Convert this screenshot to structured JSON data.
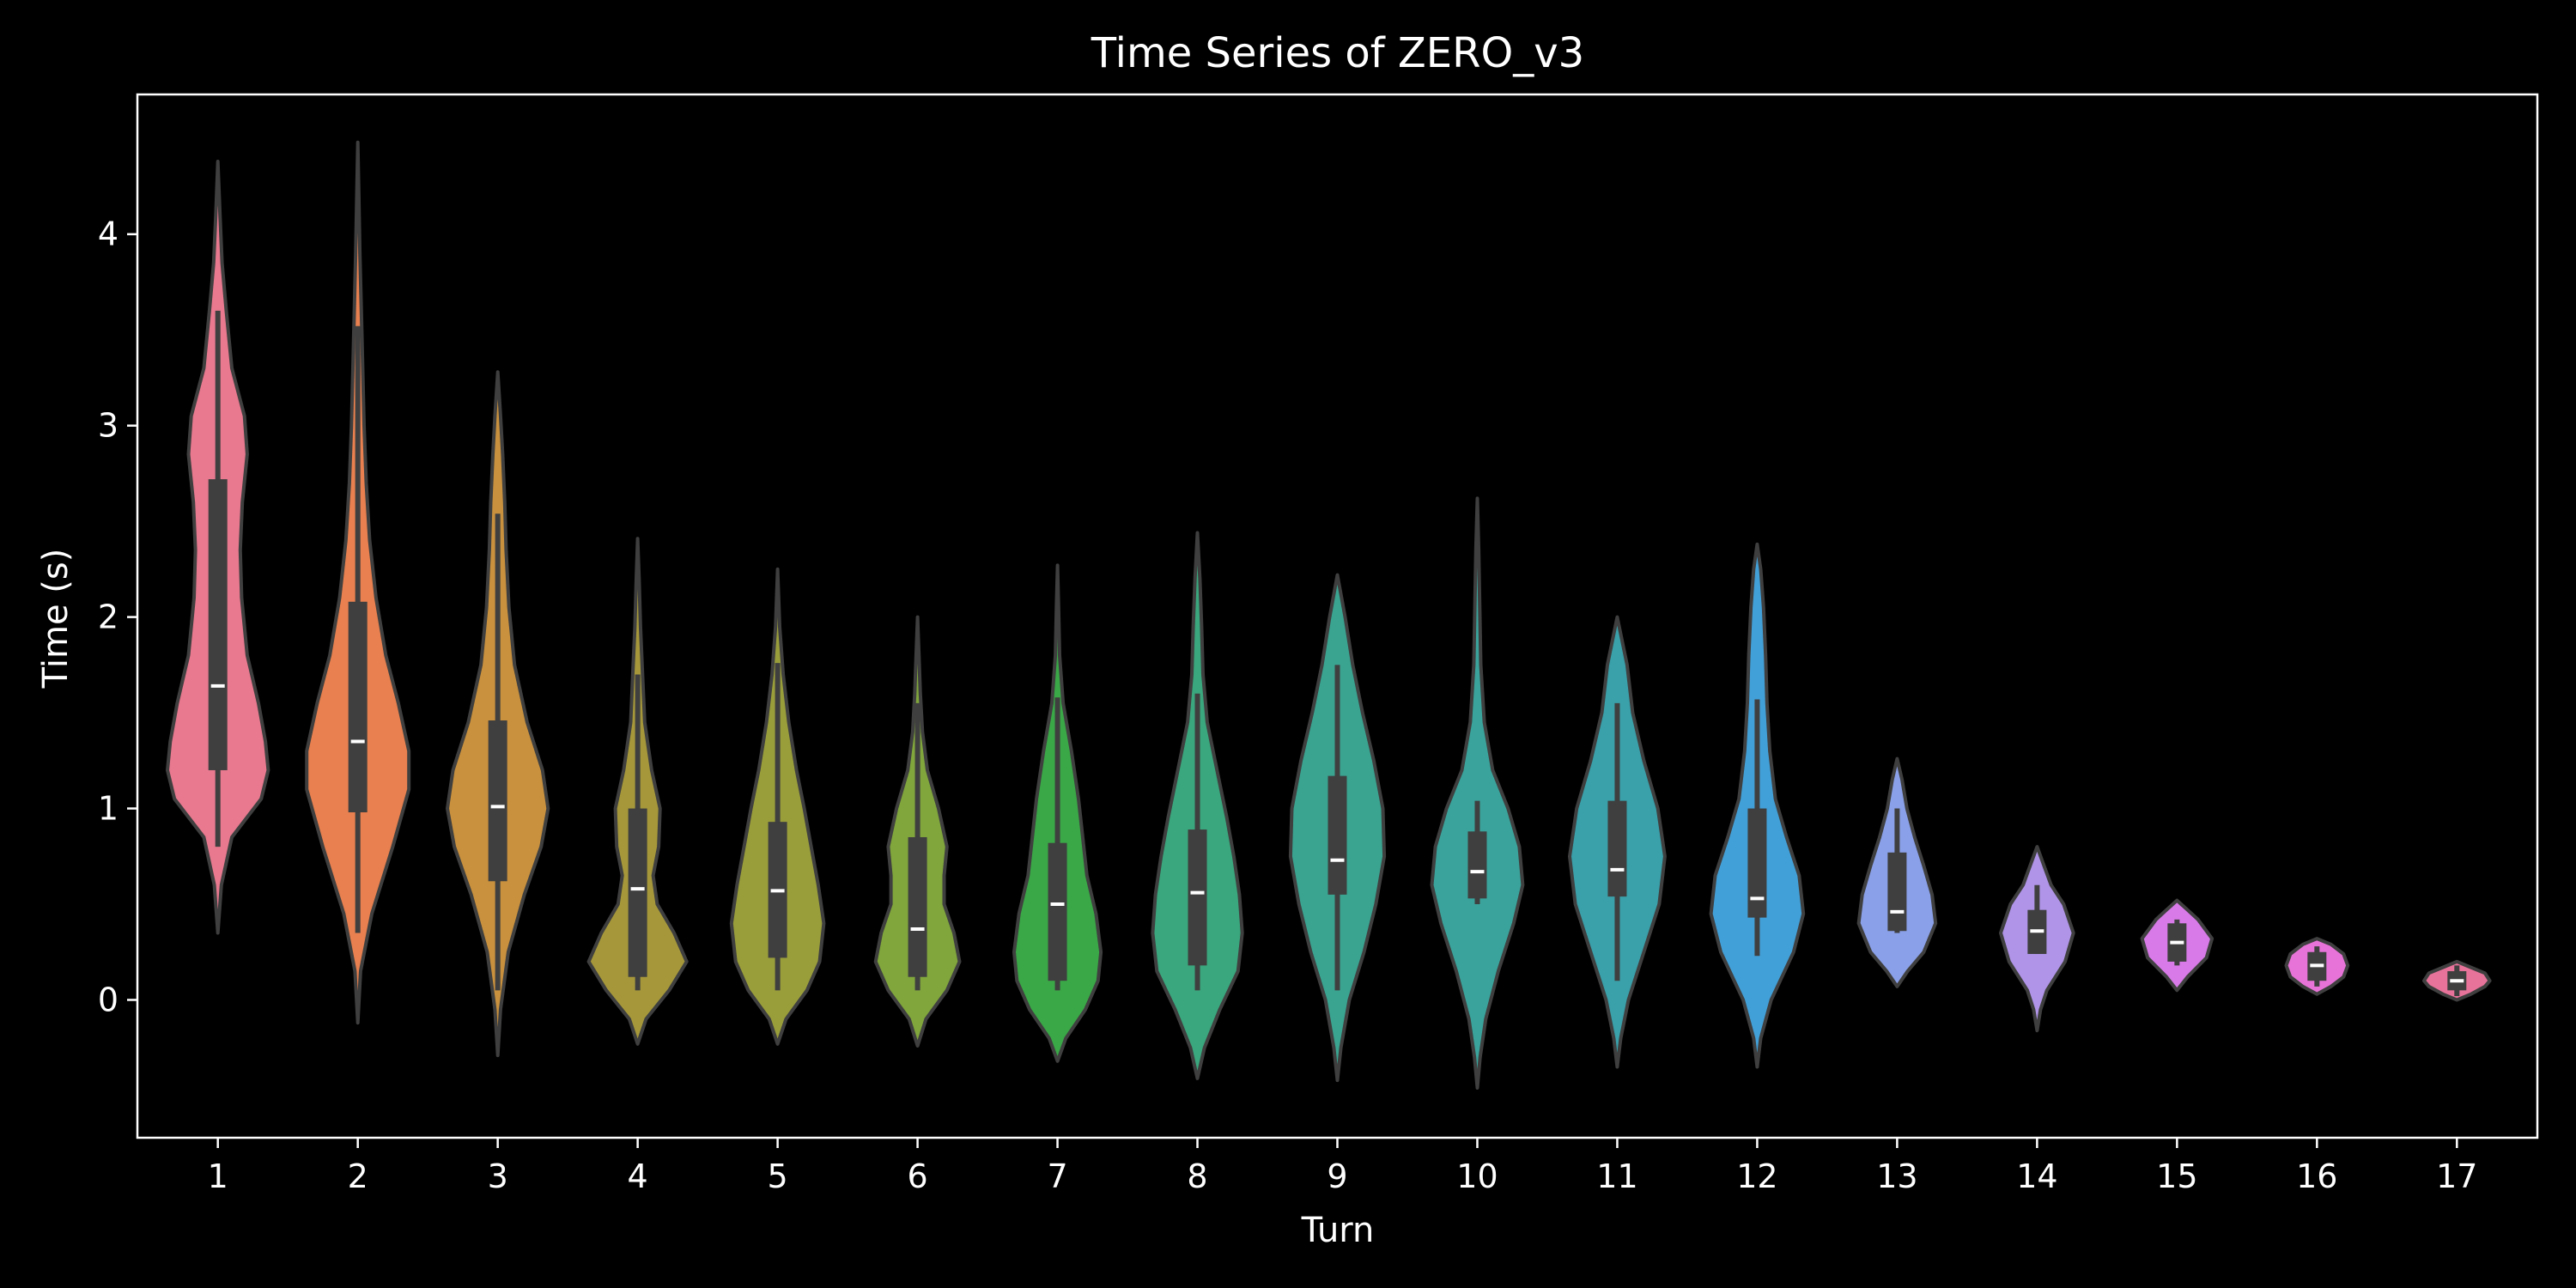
{
  "chart_data": {
    "type": "violin",
    "title": "Time Series of ZERO_v3",
    "xlabel": "Turn",
    "ylabel": "Time (s)",
    "categories": [
      "1",
      "2",
      "3",
      "4",
      "5",
      "6",
      "7",
      "8",
      "9",
      "10",
      "11",
      "12",
      "13",
      "14",
      "15",
      "16",
      "17"
    ],
    "yticks": [
      "0",
      "1",
      "2",
      "3",
      "4"
    ],
    "ylim": [
      -0.72,
      4.73
    ],
    "grid": false,
    "legend": "none",
    "colors": [
      "#e8798f",
      "#e8804f",
      "#c9913e",
      "#a6983a",
      "#9a9e3a",
      "#80a63c",
      "#3aa847",
      "#3aa77e",
      "#3aa491",
      "#3aa49c",
      "#3aa0aa",
      "#42a0d8",
      "#8aa0e8",
      "#b094e8",
      "#d87ae8",
      "#e873d8",
      "#e8739a"
    ],
    "series": [
      {
        "category": "1",
        "min": 0.35,
        "max": 4.38,
        "q1": 1.2,
        "median": 1.64,
        "q3": 2.72,
        "whisker_low": 0.8,
        "whisker_high": 3.6,
        "shape": [
          [
            0.35,
            0.0
          ],
          [
            0.6,
            0.05
          ],
          [
            0.85,
            0.2
          ],
          [
            1.05,
            0.62
          ],
          [
            1.2,
            0.72
          ],
          [
            1.35,
            0.68
          ],
          [
            1.55,
            0.58
          ],
          [
            1.8,
            0.42
          ],
          [
            2.1,
            0.34
          ],
          [
            2.35,
            0.32
          ],
          [
            2.6,
            0.35
          ],
          [
            2.85,
            0.42
          ],
          [
            3.05,
            0.38
          ],
          [
            3.3,
            0.2
          ],
          [
            3.6,
            0.12
          ],
          [
            3.85,
            0.06
          ],
          [
            4.1,
            0.03
          ],
          [
            4.38,
            0.0
          ]
        ]
      },
      {
        "category": "2",
        "min": -0.12,
        "max": 4.48,
        "q1": 0.98,
        "median": 1.35,
        "q3": 2.08,
        "whisker_low": 0.35,
        "whisker_high": 3.52,
        "shape": [
          [
            -0.12,
            0.0
          ],
          [
            0.15,
            0.04
          ],
          [
            0.45,
            0.2
          ],
          [
            0.8,
            0.5
          ],
          [
            1.1,
            0.73
          ],
          [
            1.3,
            0.73
          ],
          [
            1.55,
            0.58
          ],
          [
            1.8,
            0.4
          ],
          [
            2.1,
            0.26
          ],
          [
            2.4,
            0.17
          ],
          [
            2.7,
            0.12
          ],
          [
            3.0,
            0.09
          ],
          [
            3.3,
            0.07
          ],
          [
            3.6,
            0.05
          ],
          [
            3.9,
            0.03
          ],
          [
            4.2,
            0.015
          ],
          [
            4.48,
            0.0
          ]
        ]
      },
      {
        "category": "3",
        "min": -0.29,
        "max": 3.28,
        "q1": 0.62,
        "median": 1.01,
        "q3": 1.46,
        "whisker_low": 0.05,
        "whisker_high": 2.54,
        "shape": [
          [
            -0.29,
            0.0
          ],
          [
            -0.05,
            0.04
          ],
          [
            0.25,
            0.15
          ],
          [
            0.55,
            0.38
          ],
          [
            0.8,
            0.62
          ],
          [
            1.0,
            0.72
          ],
          [
            1.2,
            0.64
          ],
          [
            1.45,
            0.42
          ],
          [
            1.75,
            0.24
          ],
          [
            2.05,
            0.16
          ],
          [
            2.35,
            0.12
          ],
          [
            2.6,
            0.1
          ],
          [
            2.85,
            0.07
          ],
          [
            3.05,
            0.04
          ],
          [
            3.28,
            0.0
          ]
        ]
      },
      {
        "category": "4",
        "min": -0.23,
        "max": 2.41,
        "q1": 0.12,
        "median": 0.58,
        "q3": 1.0,
        "whisker_low": 0.05,
        "whisker_high": 1.7,
        "shape": [
          [
            -0.23,
            0.0
          ],
          [
            -0.1,
            0.12
          ],
          [
            0.05,
            0.45
          ],
          [
            0.2,
            0.7
          ],
          [
            0.35,
            0.52
          ],
          [
            0.5,
            0.28
          ],
          [
            0.65,
            0.22
          ],
          [
            0.8,
            0.3
          ],
          [
            1.0,
            0.32
          ],
          [
            1.2,
            0.2
          ],
          [
            1.45,
            0.1
          ],
          [
            1.7,
            0.07
          ],
          [
            1.95,
            0.04
          ],
          [
            2.2,
            0.02
          ],
          [
            2.41,
            0.0
          ]
        ]
      },
      {
        "category": "5",
        "min": -0.23,
        "max": 2.25,
        "q1": 0.22,
        "median": 0.57,
        "q3": 0.93,
        "whisker_low": 0.05,
        "whisker_high": 1.76,
        "shape": [
          [
            -0.23,
            0.0
          ],
          [
            -0.1,
            0.12
          ],
          [
            0.05,
            0.42
          ],
          [
            0.2,
            0.6
          ],
          [
            0.4,
            0.66
          ],
          [
            0.6,
            0.58
          ],
          [
            0.8,
            0.48
          ],
          [
            1.0,
            0.38
          ],
          [
            1.2,
            0.27
          ],
          [
            1.45,
            0.16
          ],
          [
            1.7,
            0.08
          ],
          [
            1.95,
            0.03
          ],
          [
            2.25,
            0.0
          ]
        ]
      },
      {
        "category": "6",
        "min": -0.24,
        "max": 2.0,
        "q1": 0.12,
        "median": 0.37,
        "q3": 0.85,
        "whisker_low": 0.05,
        "whisker_high": 1.55,
        "shape": [
          [
            -0.24,
            0.0
          ],
          [
            -0.1,
            0.12
          ],
          [
            0.05,
            0.42
          ],
          [
            0.2,
            0.6
          ],
          [
            0.35,
            0.52
          ],
          [
            0.5,
            0.38
          ],
          [
            0.65,
            0.38
          ],
          [
            0.8,
            0.42
          ],
          [
            1.0,
            0.3
          ],
          [
            1.2,
            0.14
          ],
          [
            1.4,
            0.07
          ],
          [
            1.6,
            0.04
          ],
          [
            1.8,
            0.02
          ],
          [
            2.0,
            0.0
          ]
        ]
      },
      {
        "category": "7",
        "min": -0.32,
        "max": 2.27,
        "q1": 0.1,
        "median": 0.5,
        "q3": 0.82,
        "whisker_low": 0.05,
        "whisker_high": 1.58,
        "shape": [
          [
            -0.32,
            0.0
          ],
          [
            -0.2,
            0.12
          ],
          [
            -0.05,
            0.4
          ],
          [
            0.1,
            0.58
          ],
          [
            0.25,
            0.62
          ],
          [
            0.45,
            0.55
          ],
          [
            0.65,
            0.42
          ],
          [
            0.85,
            0.36
          ],
          [
            1.05,
            0.3
          ],
          [
            1.3,
            0.2
          ],
          [
            1.55,
            0.08
          ],
          [
            1.8,
            0.03
          ],
          [
            2.05,
            0.015
          ],
          [
            2.27,
            0.0
          ]
        ]
      },
      {
        "category": "8",
        "min": -0.41,
        "max": 2.44,
        "q1": 0.18,
        "median": 0.56,
        "q3": 0.89,
        "whisker_low": 0.05,
        "whisker_high": 1.6,
        "shape": [
          [
            -0.41,
            0.0
          ],
          [
            -0.25,
            0.1
          ],
          [
            -0.05,
            0.32
          ],
          [
            0.15,
            0.58
          ],
          [
            0.35,
            0.64
          ],
          [
            0.55,
            0.6
          ],
          [
            0.75,
            0.52
          ],
          [
            0.95,
            0.42
          ],
          [
            1.2,
            0.28
          ],
          [
            1.45,
            0.14
          ],
          [
            1.7,
            0.08
          ],
          [
            1.95,
            0.06
          ],
          [
            2.2,
            0.035
          ],
          [
            2.44,
            0.0
          ]
        ]
      },
      {
        "category": "9",
        "min": -0.42,
        "max": 2.22,
        "q1": 0.55,
        "median": 0.73,
        "q3": 1.17,
        "whisker_low": 0.05,
        "whisker_high": 1.75,
        "shape": [
          [
            -0.42,
            0.0
          ],
          [
            -0.25,
            0.05
          ],
          [
            0.0,
            0.17
          ],
          [
            0.25,
            0.38
          ],
          [
            0.5,
            0.55
          ],
          [
            0.75,
            0.67
          ],
          [
            1.0,
            0.65
          ],
          [
            1.25,
            0.52
          ],
          [
            1.5,
            0.36
          ],
          [
            1.75,
            0.22
          ],
          [
            2.0,
            0.11
          ],
          [
            2.22,
            0.0
          ]
        ]
      },
      {
        "category": "10",
        "min": -0.46,
        "max": 2.62,
        "q1": 0.53,
        "median": 0.67,
        "q3": 0.88,
        "whisker_low": 0.5,
        "whisker_high": 1.04,
        "shape": [
          [
            -0.46,
            0.0
          ],
          [
            -0.3,
            0.04
          ],
          [
            -0.1,
            0.12
          ],
          [
            0.15,
            0.3
          ],
          [
            0.4,
            0.52
          ],
          [
            0.6,
            0.65
          ],
          [
            0.8,
            0.6
          ],
          [
            1.0,
            0.44
          ],
          [
            1.2,
            0.22
          ],
          [
            1.45,
            0.1
          ],
          [
            1.75,
            0.05
          ],
          [
            2.05,
            0.035
          ],
          [
            2.35,
            0.02
          ],
          [
            2.62,
            0.0
          ]
        ]
      },
      {
        "category": "11",
        "min": -0.35,
        "max": 2.0,
        "q1": 0.54,
        "median": 0.68,
        "q3": 1.04,
        "whisker_low": 0.1,
        "whisker_high": 1.55,
        "shape": [
          [
            -0.35,
            0.0
          ],
          [
            -0.2,
            0.05
          ],
          [
            0.0,
            0.16
          ],
          [
            0.25,
            0.38
          ],
          [
            0.5,
            0.6
          ],
          [
            0.75,
            0.68
          ],
          [
            1.0,
            0.58
          ],
          [
            1.25,
            0.38
          ],
          [
            1.5,
            0.22
          ],
          [
            1.75,
            0.14
          ],
          [
            2.0,
            0.0
          ]
        ]
      },
      {
        "category": "12",
        "min": -0.35,
        "max": 2.38,
        "q1": 0.43,
        "median": 0.53,
        "q3": 1.0,
        "whisker_low": 0.23,
        "whisker_high": 1.57,
        "shape": [
          [
            -0.35,
            0.0
          ],
          [
            -0.2,
            0.05
          ],
          [
            0.0,
            0.2
          ],
          [
            0.25,
            0.52
          ],
          [
            0.45,
            0.66
          ],
          [
            0.65,
            0.6
          ],
          [
            0.85,
            0.42
          ],
          [
            1.05,
            0.26
          ],
          [
            1.3,
            0.18
          ],
          [
            1.55,
            0.14
          ],
          [
            1.8,
            0.12
          ],
          [
            2.05,
            0.09
          ],
          [
            2.25,
            0.05
          ],
          [
            2.38,
            0.0
          ]
        ]
      },
      {
        "category": "13",
        "min": 0.07,
        "max": 1.26,
        "q1": 0.36,
        "median": 0.46,
        "q3": 0.77,
        "whisker_low": 0.35,
        "whisker_high": 1.0,
        "shape": [
          [
            0.07,
            0.0
          ],
          [
            0.15,
            0.15
          ],
          [
            0.25,
            0.38
          ],
          [
            0.4,
            0.55
          ],
          [
            0.55,
            0.5
          ],
          [
            0.7,
            0.38
          ],
          [
            0.85,
            0.25
          ],
          [
            1.0,
            0.14
          ],
          [
            1.15,
            0.07
          ],
          [
            1.26,
            0.0
          ]
        ]
      },
      {
        "category": "14",
        "min": -0.16,
        "max": 0.8,
        "q1": 0.24,
        "median": 0.36,
        "q3": 0.47,
        "whisker_low": 0.24,
        "whisker_high": 0.6,
        "shape": [
          [
            -0.16,
            0.0
          ],
          [
            -0.05,
            0.05
          ],
          [
            0.05,
            0.14
          ],
          [
            0.2,
            0.4
          ],
          [
            0.35,
            0.52
          ],
          [
            0.5,
            0.38
          ],
          [
            0.6,
            0.2
          ],
          [
            0.7,
            0.1
          ],
          [
            0.8,
            0.0
          ]
        ]
      },
      {
        "category": "15",
        "min": 0.05,
        "max": 0.52,
        "q1": 0.2,
        "median": 0.3,
        "q3": 0.4,
        "whisker_low": 0.18,
        "whisker_high": 0.42,
        "shape": [
          [
            0.05,
            0.0
          ],
          [
            0.12,
            0.15
          ],
          [
            0.22,
            0.42
          ],
          [
            0.32,
            0.5
          ],
          [
            0.42,
            0.3
          ],
          [
            0.47,
            0.15
          ],
          [
            0.52,
            0.0
          ]
        ]
      },
      {
        "category": "16",
        "min": 0.03,
        "max": 0.32,
        "q1": 0.1,
        "median": 0.18,
        "q3": 0.25,
        "whisker_low": 0.07,
        "whisker_high": 0.28,
        "shape": [
          [
            0.03,
            0.0
          ],
          [
            0.07,
            0.2
          ],
          [
            0.12,
            0.38
          ],
          [
            0.18,
            0.44
          ],
          [
            0.24,
            0.38
          ],
          [
            0.29,
            0.2
          ],
          [
            0.32,
            0.0
          ]
        ]
      },
      {
        "category": "17",
        "min": 0.0,
        "max": 0.2,
        "q1": 0.05,
        "median": 0.1,
        "q3": 0.15,
        "whisker_low": 0.02,
        "whisker_high": 0.18,
        "shape": [
          [
            0.0,
            0.0
          ],
          [
            0.03,
            0.2
          ],
          [
            0.07,
            0.4
          ],
          [
            0.1,
            0.47
          ],
          [
            0.14,
            0.4
          ],
          [
            0.17,
            0.2
          ],
          [
            0.2,
            0.0
          ]
        ]
      }
    ]
  }
}
